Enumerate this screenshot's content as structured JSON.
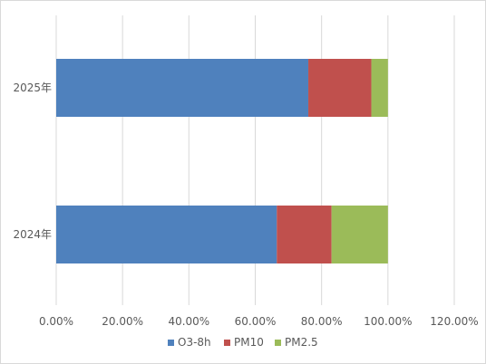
{
  "chart_data": {
    "type": "bar",
    "orientation": "horizontal",
    "stacked": true,
    "categories": [
      "2025年",
      "2024年"
    ],
    "series": [
      {
        "name": "O3-8h",
        "values": [
          0.76,
          0.665
        ],
        "color": "#4f81bd"
      },
      {
        "name": "PM10",
        "values": [
          0.19,
          0.165
        ],
        "color": "#c0504d"
      },
      {
        "name": "PM2.5",
        "values": [
          0.05,
          0.17
        ],
        "color": "#9bbb59"
      }
    ],
    "x_ticks": [
      "0.00%",
      "20.00%",
      "40.00%",
      "60.00%",
      "80.00%",
      "100.00%",
      "120.00%"
    ],
    "xlim": [
      0,
      1.2
    ],
    "grid": "vertical",
    "legend_position": "bottom",
    "title": "",
    "xlabel": "",
    "ylabel": "",
    "axis_color": "#d9d9d9",
    "text_color": "#595959"
  }
}
